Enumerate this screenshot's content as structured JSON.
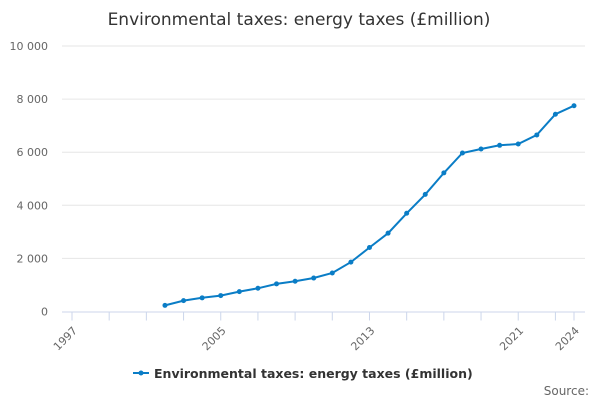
{
  "chart_data": {
    "type": "line",
    "title": "Environmental taxes: energy taxes (£million)",
    "xlabel": "",
    "ylabel": "",
    "xlim": [
      1997,
      2024
    ],
    "ylim": [
      0,
      10000
    ],
    "x_tick_labels": [
      "1997",
      "2005",
      "2013",
      "2021",
      "2024"
    ],
    "y_tick_labels": [
      "0",
      "2 000",
      "4 000",
      "6 000",
      "8 000",
      "10 000"
    ],
    "grid": "horizontal",
    "legend_position": "bottom",
    "series": [
      {
        "name": "Environmental taxes: energy taxes (£million)",
        "color": "#0a7dc6",
        "x": [
          2002,
          2003,
          2004,
          2005,
          2006,
          2007,
          2008,
          2009,
          2010,
          2011,
          2012,
          2013,
          2014,
          2015,
          2016,
          2017,
          2018,
          2019,
          2020,
          2021,
          2022,
          2023,
          2024
        ],
        "values": [
          230,
          410,
          515,
          600,
          750,
          875,
          1040,
          1140,
          1260,
          1450,
          1860,
          2410,
          2950,
          3700,
          4410,
          5220,
          5970,
          6120,
          6260,
          6310,
          6650,
          7430,
          7750
        ]
      }
    ]
  },
  "credits": "Source:"
}
